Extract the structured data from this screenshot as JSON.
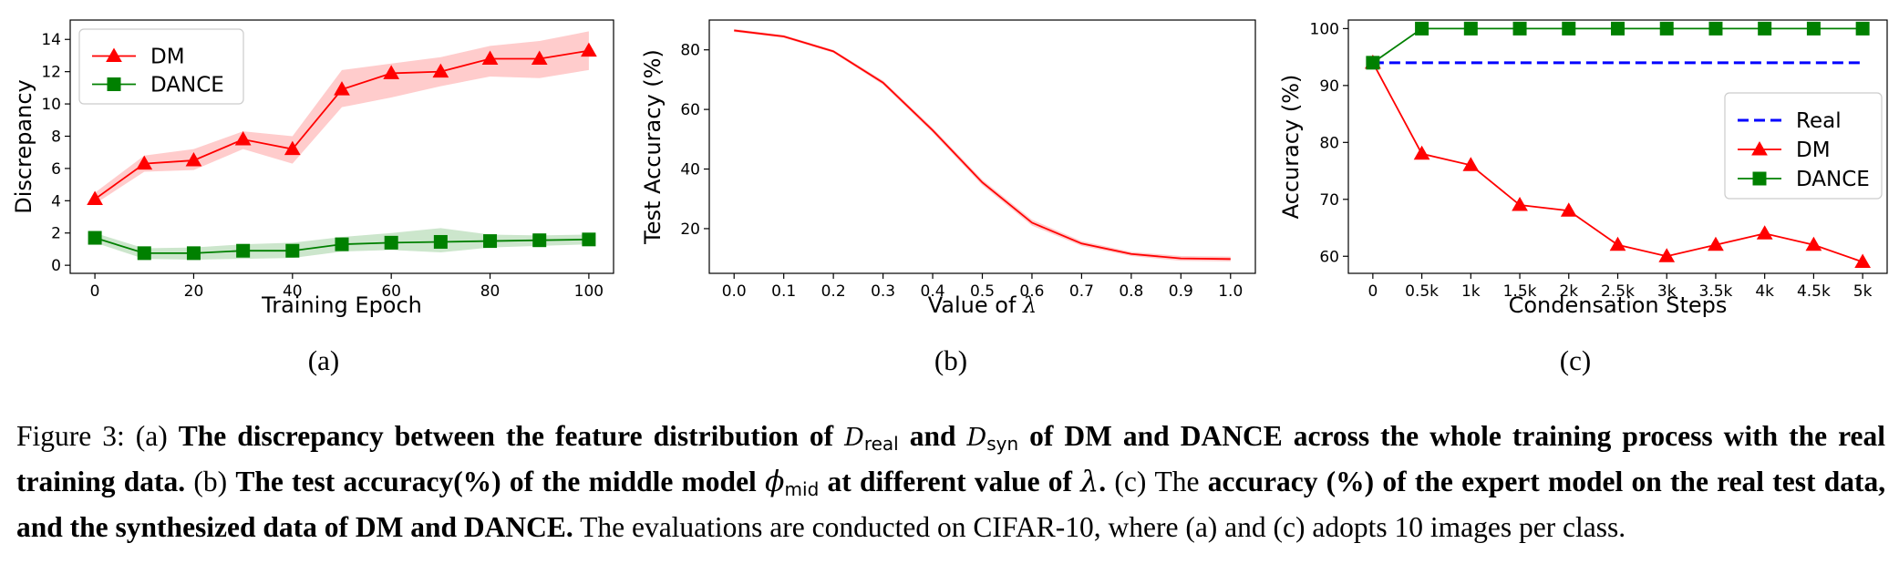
{
  "chart_data": [
    {
      "id": "a",
      "type": "line",
      "xlabel": "Training Epoch",
      "ylabel": "Discrepancy",
      "xlim": [
        -5,
        105
      ],
      "ylim": [
        -0.5,
        15.2
      ],
      "xticks": [
        0,
        20,
        40,
        60,
        80,
        100
      ],
      "yticks": [
        0,
        2,
        4,
        6,
        8,
        10,
        12,
        14
      ],
      "x": [
        0,
        10,
        20,
        30,
        40,
        50,
        60,
        70,
        80,
        90,
        100
      ],
      "legend": "upper-left",
      "series": [
        {
          "name": "DM",
          "color": "#ff0000",
          "marker": "triangle",
          "values": [
            4.1,
            6.3,
            6.5,
            7.8,
            7.2,
            10.9,
            11.9,
            12.0,
            12.8,
            12.8,
            13.3
          ],
          "band_low": [
            3.8,
            5.8,
            5.9,
            7.2,
            6.3,
            9.8,
            10.4,
            11.1,
            11.7,
            11.6,
            12.1
          ],
          "band_high": [
            4.5,
            6.8,
            7.2,
            8.3,
            8.0,
            12.1,
            12.5,
            12.9,
            13.6,
            13.9,
            14.5
          ]
        },
        {
          "name": "DANCE",
          "color": "#008000",
          "marker": "square",
          "values": [
            1.7,
            0.75,
            0.75,
            0.9,
            0.9,
            1.3,
            1.4,
            1.45,
            1.5,
            1.55,
            1.6
          ],
          "band_low": [
            1.4,
            0.4,
            0.35,
            0.4,
            0.45,
            0.85,
            0.95,
            0.8,
            1.1,
            1.2,
            1.3
          ],
          "band_high": [
            2.0,
            1.05,
            1.1,
            1.3,
            1.4,
            1.75,
            2.0,
            2.3,
            1.9,
            1.85,
            1.9
          ]
        }
      ]
    },
    {
      "id": "b",
      "type": "line",
      "xlabel": "Value of λ",
      "ylabel": "Test Accuracy (%)",
      "xlim": [
        -0.05,
        1.05
      ],
      "ylim": [
        5,
        90
      ],
      "xticks": [
        0.0,
        0.1,
        0.2,
        0.3,
        0.4,
        0.5,
        0.6,
        0.7,
        0.8,
        0.9,
        1.0
      ],
      "xtick_labels": [
        "0.0",
        "0.1",
        "0.2",
        "0.3",
        "0.4",
        "0.5",
        "0.6",
        "0.7",
        "0.8",
        "0.9",
        "1.0"
      ],
      "yticks": [
        20,
        40,
        60,
        80
      ],
      "x": [
        0.0,
        0.1,
        0.2,
        0.3,
        0.4,
        0.5,
        0.6,
        0.7,
        0.8,
        0.9,
        1.0
      ],
      "series": [
        {
          "color": "#ff0000",
          "values": [
            86.5,
            84.5,
            79.5,
            69.0,
            53.0,
            35.5,
            22.0,
            15.0,
            11.5,
            10.0,
            9.8
          ],
          "band_low": [
            86.0,
            84.0,
            79.0,
            68.3,
            52.2,
            34.6,
            21.0,
            14.2,
            10.8,
            9.2,
            9.0
          ],
          "band_high": [
            87.0,
            85.0,
            80.0,
            69.7,
            53.8,
            36.4,
            23.0,
            15.8,
            12.2,
            10.8,
            10.6
          ]
        }
      ]
    },
    {
      "id": "c",
      "type": "line",
      "xlabel": "Condensation Steps",
      "ylabel": "Accuracy (%)",
      "xlim": [
        -0.5,
        10.5
      ],
      "ylim": [
        57,
        101.5
      ],
      "xticks": [
        0,
        1,
        2,
        3,
        4,
        5,
        6,
        7,
        8,
        9,
        10
      ],
      "xtick_labels": [
        "0",
        "0.5k",
        "1k",
        "1.5k",
        "2k",
        "2.5k",
        "3k",
        "3.5k",
        "4k",
        "4.5k",
        "5k"
      ],
      "yticks": [
        60,
        70,
        80,
        90,
        100
      ],
      "x": [
        0,
        1,
        2,
        3,
        4,
        5,
        6,
        7,
        8,
        9,
        10
      ],
      "legend": "center-right",
      "series": [
        {
          "name": "Real",
          "color": "#0000ff",
          "style": "dashed",
          "values": [
            94,
            94,
            94,
            94,
            94,
            94,
            94,
            94,
            94,
            94,
            94
          ]
        },
        {
          "name": "DM",
          "color": "#ff0000",
          "marker": "triangle",
          "values": [
            94,
            78,
            76,
            69,
            68,
            62,
            60,
            62,
            64,
            62,
            59
          ]
        },
        {
          "name": "DANCE",
          "color": "#008000",
          "marker": "square",
          "values": [
            94,
            100,
            100,
            100,
            100,
            100,
            100,
            100,
            100,
            100,
            100
          ]
        }
      ]
    }
  ],
  "panel_labels": [
    "(a)",
    "(b)",
    "(c)"
  ],
  "caption": {
    "fig_label": "Figure 3:",
    "a_mark": "(a)",
    "a_text1": "The discrepancy between the feature distribution of",
    "d_symbol": "D",
    "sub_real": "real",
    "and_word": "and",
    "sub_syn": "syn",
    "a_text2": "of DM and DANCE across the whole training process with the real training data.",
    "b_mark": "(b)",
    "b_text1": "The test accuracy(%) of the middle model",
    "phi": "ϕ",
    "sub_mid": "mid",
    "b_text2": "at different value of",
    "lambda": "λ",
    "period": ".",
    "c_mark": "(c) The",
    "c_bold1": "accuracy (%) of the",
    "c_bold2": "expert model on the real test data, and the synthesized data of DM and DANCE.",
    "tail": "The evaluations are conducted on CIFAR-10, where (a) and (c) adopts 10 images per class."
  }
}
